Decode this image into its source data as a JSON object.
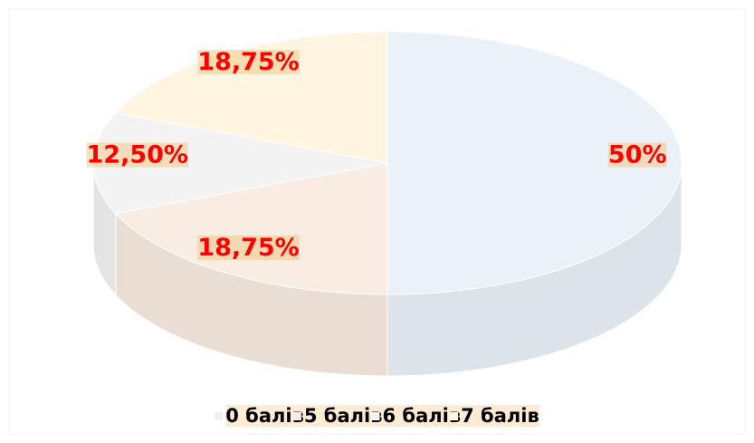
{
  "chart_data": {
    "type": "pie3d",
    "categories": [
      "0 балів",
      "5 балів",
      "6 балів",
      "7 балів"
    ],
    "values": [
      50,
      18.75,
      12.5,
      18.75
    ],
    "value_labels": [
      "50%",
      "18,75%",
      "12,50%",
      "18,75%"
    ],
    "colors": [
      "#eaf1f9",
      "#f9ece2",
      "#f3f3f3",
      "#fff5e0"
    ],
    "legend": "bottom"
  }
}
